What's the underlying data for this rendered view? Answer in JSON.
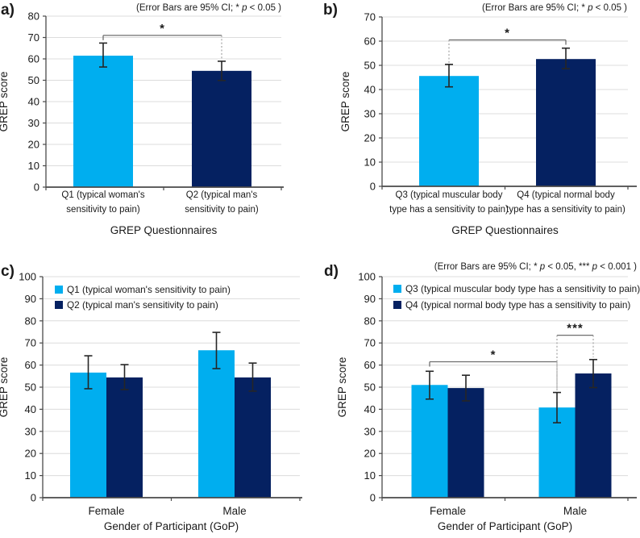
{
  "figure": {
    "description": "Four-panel bar chart figure of GREP scores",
    "panel_labels": [
      "a)",
      "b)",
      "c)",
      "d)"
    ]
  },
  "colors": {
    "bar_light": "#00aeef",
    "bar_dark": "#052161",
    "gridline": "#dcdcdc",
    "axis": "#4a4a4a",
    "error_bar": "#262626",
    "bracket": "#6e6e6e",
    "dotted": "#a3a3a3",
    "text": "#1a1a1a"
  },
  "chart_data": [
    {
      "id": "a",
      "panel_label": "a)",
      "type": "bar",
      "annotation": "(Error Bars are 95% CI; * p < 0.05 )",
      "ylabel": "GREP score",
      "xlabel": "GREP Questionnaires",
      "ylim": [
        0,
        80
      ],
      "ytick_step": 10,
      "grid": true,
      "legend_position": null,
      "categories": [
        [
          "Q1 (typical woman's",
          "sensitivity to pain)"
        ],
        [
          "Q2 (typical man's",
          "sensitivity to pain)"
        ]
      ],
      "series": [
        {
          "name": null,
          "colors": [
            "light",
            "dark"
          ],
          "values": [
            61.5,
            54.4
          ],
          "ci": [
            [
              56.2,
              67.4
            ],
            [
              49.9,
              58.9
            ]
          ]
        }
      ],
      "significance": [
        {
          "from": [
            0,
            0
          ],
          "to": [
            1,
            0
          ],
          "level": 71,
          "label": "*",
          "left_end": "tick",
          "right_end": "dotted",
          "right_drop_to": 59.5
        }
      ]
    },
    {
      "id": "b",
      "panel_label": "b)",
      "type": "bar",
      "annotation": "(Error Bars are 95% CI; * p < 0.05 )",
      "ylabel": "GREP score",
      "xlabel": "GREP Questionnaires",
      "ylim": [
        0,
        70
      ],
      "ytick_step": 10,
      "grid": true,
      "legend_position": null,
      "categories": [
        [
          "Q3 (typical muscular body",
          "type has a sensitivity to pain)"
        ],
        [
          "Q4 (typical normal body",
          "type has a sensitivity to pain)"
        ]
      ],
      "series": [
        {
          "name": null,
          "colors": [
            "light",
            "dark"
          ],
          "values": [
            45.6,
            52.6
          ],
          "ci": [
            [
              41.1,
              50.4
            ],
            [
              48.6,
              57.1
            ]
          ]
        }
      ],
      "significance": [
        {
          "from": [
            0,
            0
          ],
          "to": [
            1,
            0
          ],
          "level": 60.5,
          "label": "*",
          "left_end": "dotted",
          "left_drop_to": 51,
          "right_end": "tick"
        }
      ]
    },
    {
      "id": "c",
      "panel_label": "c)",
      "type": "bar",
      "annotation": null,
      "ylabel": "GREP score",
      "xlabel": "Gender of Participant (GoP)",
      "ylim": [
        0,
        100
      ],
      "ytick_step": 10,
      "grid": true,
      "legend_position": "top-left",
      "categories": [
        "Female",
        "Male"
      ],
      "series": [
        {
          "name": "Q1 (typical woman's sensitivity to pain)",
          "color": "light",
          "values": [
            56.6,
            66.7
          ],
          "ci": [
            [
              49.3,
              64.2
            ],
            [
              58.4,
              74.8
            ]
          ]
        },
        {
          "name": "Q2 (typical man's sensitivity to pain)",
          "color": "dark",
          "values": [
            54.4,
            54.4
          ],
          "ci": [
            [
              48.9,
              60.2
            ],
            [
              48.2,
              60.9
            ]
          ]
        }
      ],
      "significance": []
    },
    {
      "id": "d",
      "panel_label": "d)",
      "type": "bar",
      "annotation": "(Error Bars are 95% CI; * p < 0.05, *** p < 0.001 )",
      "ylabel": "GREP score",
      "xlabel": "Gender of Participant (GoP)",
      "ylim": [
        0,
        100
      ],
      "ytick_step": 10,
      "grid": true,
      "legend_position": "top-left",
      "categories": [
        "Female",
        "Male"
      ],
      "series": [
        {
          "name": "Q3 (typical muscular body type has a sensitivity to pain)",
          "color": "light",
          "values": [
            51.0,
            40.8
          ],
          "ci": [
            [
              44.6,
              57.2
            ],
            [
              33.9,
              47.6
            ]
          ]
        },
        {
          "name": "Q4 (typical normal body type has a sensitivity to pain)",
          "color": "dark",
          "values": [
            49.6,
            56.2
          ],
          "ci": [
            [
              43.8,
              55.4
            ],
            [
              49.8,
              62.5
            ]
          ]
        }
      ],
      "significance": [
        {
          "from": [
            0,
            0
          ],
          "to": [
            1,
            0
          ],
          "level": 61.5,
          "label": "*",
          "left_end": "tick",
          "right_end": "dotted",
          "right_drop_to": 48.5
        },
        {
          "from": [
            1,
            0
          ],
          "to": [
            1,
            1
          ],
          "level": 73.5,
          "label": "***",
          "left_end": "dotted",
          "left_drop_to": 48.5,
          "right_end": "dotted",
          "right_drop_to": 63.5
        }
      ]
    }
  ]
}
